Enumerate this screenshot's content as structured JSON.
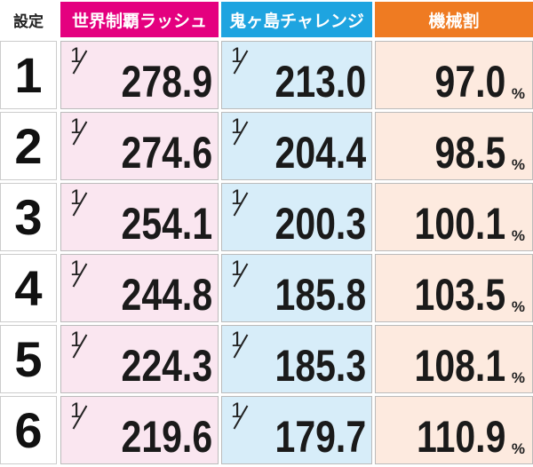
{
  "table": {
    "header": [
      "設定",
      "世界制覇ラッシュ",
      "鬼ヶ島チャレンジ",
      "機械割"
    ],
    "rows": [
      {
        "setting": "1",
        "rush": {
          "numerator": "1",
          "denominator": "278.9"
        },
        "challenge": {
          "numerator": "1",
          "denominator": "213.0"
        },
        "rate": {
          "value": "97.0",
          "unit": "%"
        }
      },
      {
        "setting": "2",
        "rush": {
          "numerator": "1",
          "denominator": "274.6"
        },
        "challenge": {
          "numerator": "1",
          "denominator": "204.4"
        },
        "rate": {
          "value": "98.5",
          "unit": "%"
        }
      },
      {
        "setting": "3",
        "rush": {
          "numerator": "1",
          "denominator": "254.1"
        },
        "challenge": {
          "numerator": "1",
          "denominator": "200.3"
        },
        "rate": {
          "value": "100.1",
          "unit": "%"
        }
      },
      {
        "setting": "4",
        "rush": {
          "numerator": "1",
          "denominator": "244.8"
        },
        "challenge": {
          "numerator": "1",
          "denominator": "185.8"
        },
        "rate": {
          "value": "103.5",
          "unit": "%"
        }
      },
      {
        "setting": "5",
        "rush": {
          "numerator": "1",
          "denominator": "224.3"
        },
        "challenge": {
          "numerator": "1",
          "denominator": "185.3"
        },
        "rate": {
          "value": "108.1",
          "unit": "%"
        }
      },
      {
        "setting": "6",
        "rush": {
          "numerator": "1",
          "denominator": "219.6"
        },
        "challenge": {
          "numerator": "1",
          "denominator": "179.7"
        },
        "rate": {
          "value": "110.9",
          "unit": "%"
        }
      }
    ]
  }
}
